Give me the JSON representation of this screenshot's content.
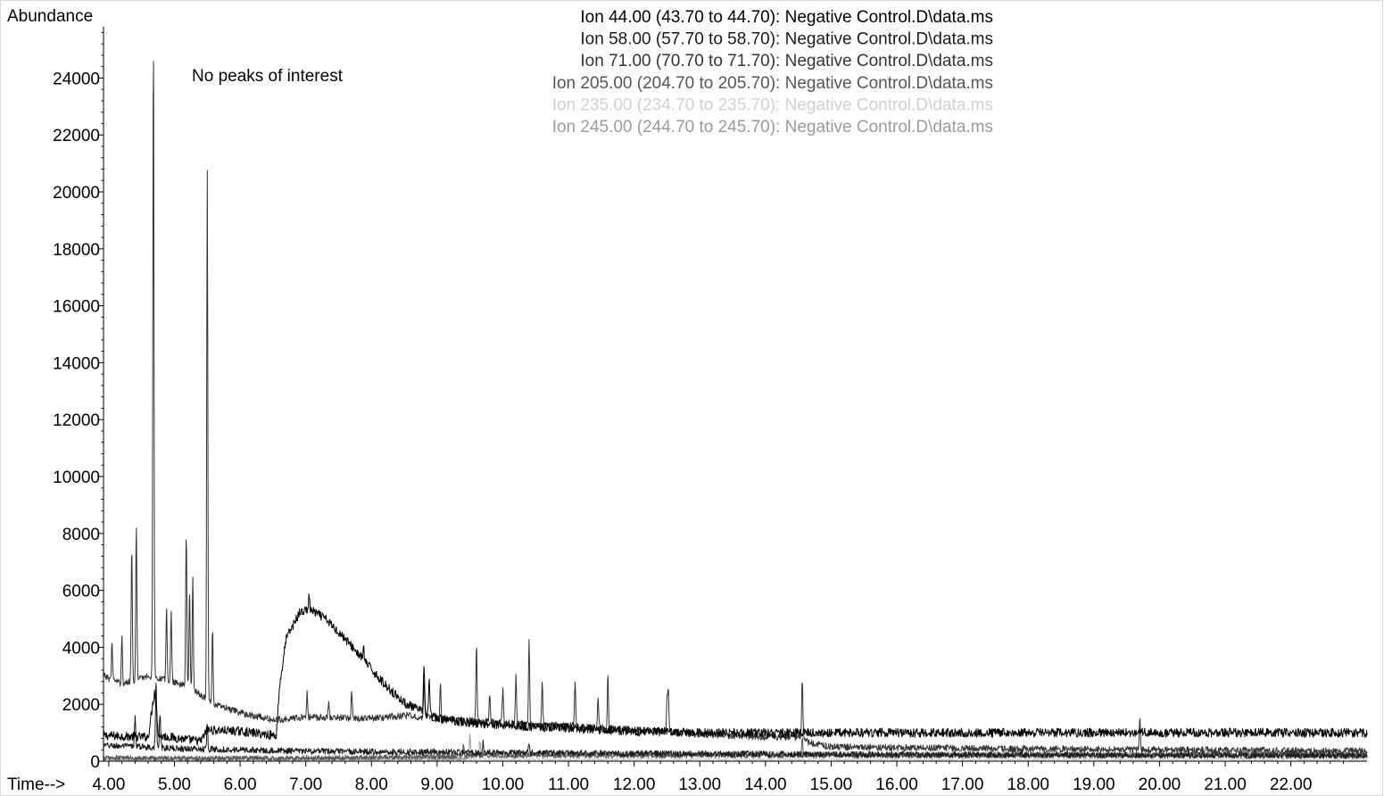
{
  "chart_data": {
    "type": "line",
    "ylabel": "Abundance",
    "xlabel": "Time-->",
    "annotation": "No peaks of interest",
    "xlim": [
      3.92,
      23.16
    ],
    "ylim": [
      0,
      25800
    ],
    "x_ticks": [
      4,
      5,
      6,
      7,
      8,
      9,
      10,
      11,
      12,
      13,
      14,
      15,
      16,
      17,
      18,
      19,
      20,
      21,
      22
    ],
    "x_tick_labels": [
      "4.00",
      "5.00",
      "6.00",
      "7.00",
      "8.00",
      "9.00",
      "10.00",
      "11.00",
      "12.00",
      "13.00",
      "14.00",
      "15.00",
      "16.00",
      "17.00",
      "18.00",
      "19.00",
      "20.00",
      "21.00",
      "22.00"
    ],
    "y_ticks": [
      0,
      2000,
      4000,
      6000,
      8000,
      10000,
      12000,
      14000,
      16000,
      18000,
      20000,
      22000,
      24000
    ],
    "y_tick_labels": [
      "0",
      "2000",
      "4000",
      "6000",
      "8000",
      "10000",
      "12000",
      "14000",
      "16000",
      "18000",
      "20000",
      "22000",
      "24000"
    ],
    "grid": false,
    "legend_position": "top-center",
    "series": [
      {
        "name": "Ion  44.00 (43.70 to 44.70): Negative Control.D\\data.ms",
        "color": "#000000",
        "noise": 160,
        "points": [
          [
            3.92,
            900
          ],
          [
            4.6,
            850
          ],
          [
            4.7,
            2500
          ],
          [
            4.76,
            900
          ],
          [
            5.4,
            700
          ],
          [
            5.5,
            1100
          ],
          [
            6.0,
            1050
          ],
          [
            6.55,
            900
          ],
          [
            6.6,
            2600
          ],
          [
            6.7,
            4300
          ],
          [
            6.9,
            5200
          ],
          [
            7.05,
            5350
          ],
          [
            7.3,
            5000
          ],
          [
            7.6,
            4300
          ],
          [
            7.9,
            3500
          ],
          [
            8.2,
            2700
          ],
          [
            8.5,
            2050
          ],
          [
            8.8,
            1700
          ],
          [
            9.0,
            1500
          ],
          [
            9.5,
            1350
          ],
          [
            10.5,
            1200
          ],
          [
            12.0,
            1050
          ],
          [
            13.0,
            1000
          ],
          [
            23.16,
            1000
          ]
        ],
        "peaks": [
          [
            7.05,
            5800
          ],
          [
            7.88,
            4000
          ],
          [
            8.8,
            3500
          ],
          [
            8.88,
            3000
          ]
        ]
      },
      {
        "name": "Ion  58.00 (57.70 to 58.70): Negative Control.D\\data.ms",
        "color": "#1a1a1a",
        "noise": 110,
        "points": [
          [
            3.92,
            550
          ],
          [
            4.6,
            500
          ],
          [
            5.0,
            450
          ],
          [
            6.0,
            400
          ],
          [
            7.0,
            350
          ],
          [
            8.0,
            330
          ],
          [
            9.0,
            320
          ],
          [
            10.0,
            300
          ],
          [
            12.0,
            270
          ],
          [
            14.0,
            250
          ],
          [
            16.0,
            230
          ],
          [
            23.16,
            200
          ]
        ],
        "peaks": [
          [
            4.4,
            1600
          ],
          [
            4.72,
            2800
          ],
          [
            4.78,
            1700
          ],
          [
            5.5,
            1400
          ],
          [
            9.7,
            700
          ],
          [
            10.4,
            600
          ]
        ]
      },
      {
        "name": "Ion  71.00 (70.70 to 71.70): Negative Control.D\\data.ms",
        "color": "#333333",
        "noise": 120,
        "points": [
          [
            3.92,
            3000
          ],
          [
            4.2,
            2700
          ],
          [
            4.6,
            3000
          ],
          [
            5.0,
            2800
          ],
          [
            5.3,
            2500
          ],
          [
            5.6,
            2000
          ],
          [
            6.0,
            1700
          ],
          [
            6.5,
            1450
          ],
          [
            7.0,
            1550
          ],
          [
            8.0,
            1500
          ],
          [
            8.5,
            1600
          ],
          [
            9.0,
            1500
          ],
          [
            10.0,
            1350
          ],
          [
            11.0,
            1250
          ],
          [
            12.0,
            1100
          ],
          [
            13.0,
            950
          ],
          [
            14.0,
            850
          ],
          [
            14.6,
            850
          ],
          [
            14.65,
            650
          ],
          [
            15.0,
            500
          ],
          [
            17.0,
            450
          ],
          [
            20.0,
            400
          ],
          [
            23.16,
            350
          ]
        ],
        "peaks": [
          [
            4.05,
            4200
          ],
          [
            4.2,
            4400
          ],
          [
            4.35,
            7600
          ],
          [
            4.42,
            8400
          ],
          [
            4.68,
            25700
          ],
          [
            4.88,
            5400
          ],
          [
            4.95,
            5200
          ],
          [
            5.18,
            8100
          ],
          [
            5.23,
            6000
          ],
          [
            5.28,
            6500
          ],
          [
            5.5,
            20700
          ],
          [
            5.58,
            4600
          ],
          [
            7.02,
            2400
          ],
          [
            7.35,
            2100
          ],
          [
            7.7,
            2500
          ],
          [
            8.8,
            2800
          ],
          [
            9.05,
            2800
          ],
          [
            9.6,
            4200
          ],
          [
            9.8,
            2400
          ],
          [
            10.0,
            2600
          ],
          [
            10.2,
            3000
          ],
          [
            10.4,
            4200
          ],
          [
            10.6,
            2800
          ],
          [
            11.1,
            2900
          ],
          [
            11.45,
            2300
          ],
          [
            11.6,
            3000
          ],
          [
            12.5,
            2100
          ],
          [
            12.52,
            2600
          ],
          [
            14.56,
            2800
          ],
          [
            19.7,
            1500
          ]
        ]
      },
      {
        "name": "Ion 205.00 (204.70 to 205.70): Negative Control.D\\data.ms",
        "color": "#555555",
        "noise": 90,
        "points": [
          [
            3.92,
            120
          ],
          [
            6.0,
            100
          ],
          [
            9.0,
            150
          ],
          [
            9.6,
            200
          ],
          [
            10.5,
            200
          ],
          [
            12.0,
            200
          ],
          [
            14.0,
            200
          ],
          [
            23.16,
            200
          ]
        ],
        "peaks": [
          [
            9.4,
            600
          ],
          [
            14.56,
            800
          ]
        ]
      },
      {
        "name": "Ion 235.00 (234.70 to 235.70): Negative Control.D\\data.ms",
        "color": "#d0d0d0",
        "noise": 60,
        "points": [
          [
            3.92,
            60
          ],
          [
            23.16,
            60
          ]
        ],
        "peaks": []
      },
      {
        "name": "Ion 245.00 (244.70 to 245.70): Negative Control.D\\data.ms",
        "color": "#9a9a9a",
        "noise": 90,
        "points": [
          [
            3.92,
            80
          ],
          [
            9.4,
            100
          ],
          [
            9.6,
            250
          ],
          [
            23.16,
            250
          ]
        ],
        "peaks": [
          [
            9.5,
            1000
          ],
          [
            9.65,
            700
          ]
        ]
      }
    ]
  }
}
